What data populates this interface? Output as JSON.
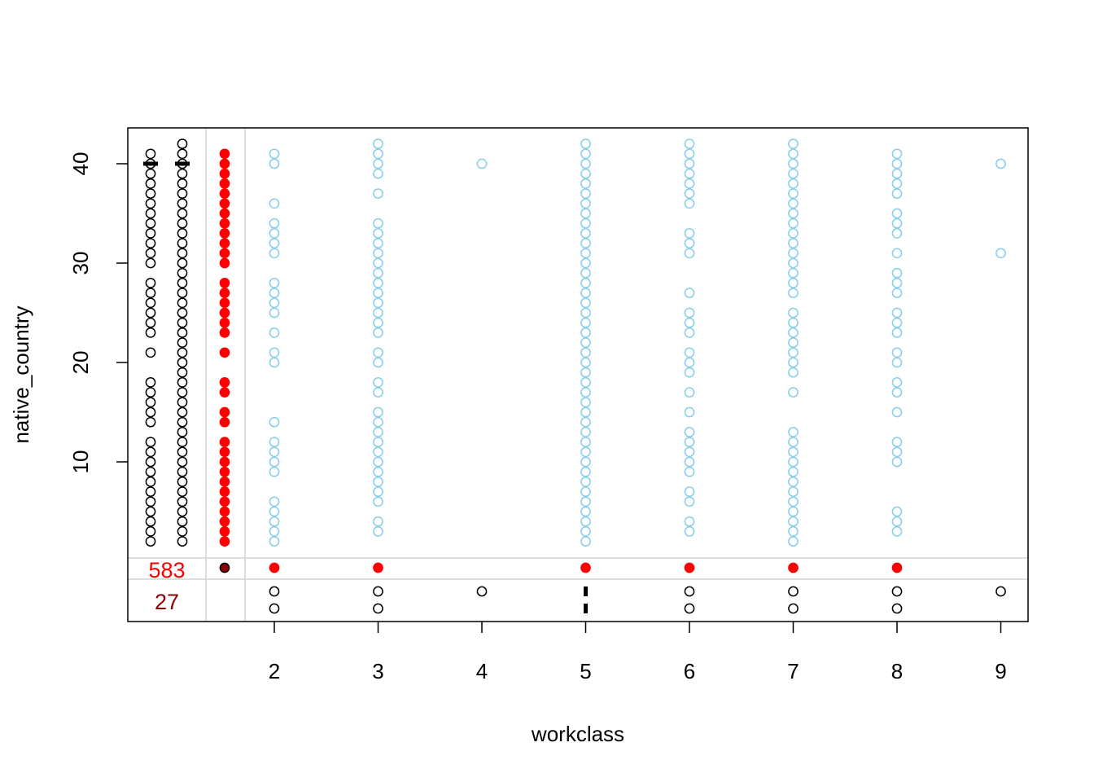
{
  "chart_data": {
    "type": "scatter",
    "title": "",
    "xlabel": "workclass",
    "ylabel": "native_country",
    "xlim": [
      0.6,
      9.3
    ],
    "ylim": [
      -0.3,
      42.5
    ],
    "x_ticks": [
      "2",
      "3",
      "4",
      "5",
      "6",
      "7",
      "8",
      "9"
    ],
    "y_ticks": [
      "10",
      "20",
      "30",
      "40"
    ],
    "missing_counts": [
      {
        "label": "583",
        "color": "#FF0000"
      },
      {
        "label": "27",
        "color": "#8B0000"
      }
    ],
    "colors": {
      "observed": "#87CEEB",
      "missing_in_other": "#FF0000",
      "both_missing": "#8B0000",
      "marginal": "#000000",
      "divider": "#D3D3D3"
    },
    "series": [
      {
        "x": 2,
        "y": [
          2,
          3,
          4,
          5,
          6,
          9,
          10,
          11,
          12,
          14,
          20,
          21,
          23,
          25,
          26,
          27,
          28,
          31,
          32,
          33,
          34,
          36,
          40,
          41
        ]
      },
      {
        "x": 3,
        "y": [
          3,
          4,
          6,
          7,
          8,
          9,
          10,
          11,
          12,
          13,
          14,
          15,
          17,
          18,
          20,
          21,
          23,
          24,
          25,
          26,
          27,
          28,
          29,
          30,
          31,
          32,
          33,
          34,
          37,
          39,
          40,
          41,
          42
        ]
      },
      {
        "x": 4,
        "y": [
          40
        ]
      },
      {
        "x": 5,
        "y": [
          2,
          3,
          4,
          5,
          6,
          7,
          8,
          9,
          10,
          11,
          12,
          13,
          14,
          15,
          16,
          17,
          18,
          19,
          20,
          21,
          22,
          23,
          24,
          25,
          26,
          27,
          28,
          29,
          30,
          31,
          32,
          33,
          34,
          35,
          36,
          37,
          38,
          39,
          40,
          41,
          42
        ]
      },
      {
        "x": 6,
        "y": [
          3,
          4,
          6,
          7,
          9,
          10,
          11,
          12,
          13,
          15,
          17,
          19,
          20,
          21,
          23,
          24,
          25,
          27,
          31,
          32,
          33,
          36,
          37,
          38,
          39,
          40,
          41,
          42
        ]
      },
      {
        "x": 7,
        "y": [
          2,
          3,
          4,
          5,
          6,
          7,
          8,
          9,
          10,
          11,
          12,
          13,
          17,
          19,
          20,
          21,
          22,
          23,
          24,
          25,
          27,
          28,
          29,
          30,
          31,
          32,
          33,
          34,
          35,
          36,
          37,
          38,
          39,
          40,
          41,
          42
        ]
      },
      {
        "x": 8,
        "y": [
          3,
          4,
          5,
          10,
          11,
          12,
          15,
          17,
          18,
          20,
          21,
          23,
          24,
          25,
          27,
          28,
          29,
          31,
          33,
          34,
          35,
          37,
          38,
          39,
          40,
          41
        ]
      },
      {
        "x": 9,
        "y": [
          31,
          40
        ]
      }
    ],
    "y_margin_strip": {
      "col1": [
        2,
        3,
        4,
        5,
        6,
        7,
        8,
        9,
        10,
        11,
        12,
        14,
        15,
        16,
        17,
        18,
        21,
        23,
        24,
        25,
        26,
        27,
        28,
        30,
        31,
        32,
        33,
        34,
        35,
        36,
        37,
        38,
        39,
        40,
        41
      ],
      "col2": [
        2,
        3,
        4,
        5,
        6,
        7,
        8,
        9,
        10,
        11,
        12,
        13,
        14,
        15,
        16,
        17,
        18,
        19,
        20,
        21,
        22,
        23,
        24,
        25,
        26,
        27,
        28,
        29,
        30,
        31,
        32,
        33,
        34,
        35,
        36,
        37,
        38,
        39,
        40,
        41,
        42
      ],
      "red": [
        2,
        3,
        4,
        5,
        6,
        7,
        8,
        9,
        10,
        11,
        12,
        14,
        15,
        17,
        18,
        21,
        23,
        24,
        25,
        26,
        27,
        28,
        30,
        31,
        32,
        33,
        34,
        35,
        36,
        37,
        38,
        39,
        40,
        41
      ]
    },
    "x_missing_red": [
      2,
      3,
      5,
      6,
      7,
      8
    ],
    "x_margin_rows": [
      {
        "row": 1,
        "x": [
          2,
          3,
          4,
          5,
          6,
          7,
          8,
          9
        ]
      },
      {
        "row": 2,
        "x": [
          2,
          3,
          5,
          6,
          7,
          8
        ]
      }
    ]
  }
}
